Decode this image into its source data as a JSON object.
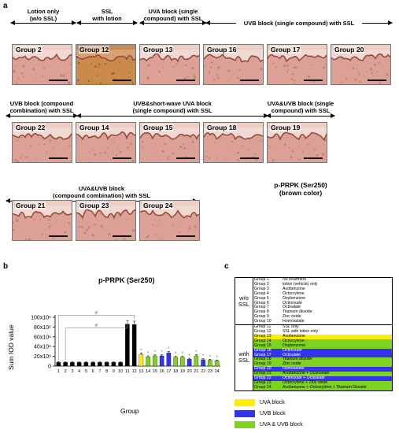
{
  "panel_a": {
    "letter": "a",
    "headers": [
      {
        "id": "lotion-only",
        "text": "Lotion only\n(w/o SSL)"
      },
      {
        "id": "ssl-lotion",
        "text": "SSL\nwith lotion"
      },
      {
        "id": "uva-single",
        "text": "UVA block (single\ncompound) with SSL"
      },
      {
        "id": "uvb-single",
        "text": "UVB block (single compound) with SSL"
      },
      {
        "id": "uvb-combo",
        "text": "UVB block (compound\ncombination) with SSL"
      },
      {
        "id": "uvb-short",
        "text": "UVB&short-wave UVA block\n(single compound) with SSL"
      },
      {
        "id": "uvauvb-single",
        "text": "UVA&UVB block (single\ncompound) with SSL"
      },
      {
        "id": "uvauvb-combo",
        "text": "UVA&UVB block\n(compound combination) with SSL"
      }
    ],
    "tiles": [
      "Group 2",
      "Group 12",
      "Group 13",
      "Group 16",
      "Group 17",
      "Group 20",
      "Group 22",
      "Group 14",
      "Group 15",
      "Group 18",
      "Group 19",
      "Group 21",
      "Group 23",
      "Group 24"
    ],
    "stain_label": "p-PRPK (Ser250)\n(brown color)"
  },
  "panel_b": {
    "letter": "b"
  },
  "panel_c": {
    "letter": "c",
    "wo_ssl_label": "w/o\nSSL",
    "with_ssl_label": "with\nSSL",
    "rows_wo": [
      [
        "Group 1",
        "No treatment"
      ],
      [
        "Group 2",
        "lotion (vehicle) only"
      ],
      [
        "Group 3",
        "Avobenzone"
      ],
      [
        "Group 4",
        "Octocrylene"
      ],
      [
        "Group 5",
        "Oxybenzone"
      ],
      [
        "Group 6",
        "Octinoxate"
      ],
      [
        "Group 7",
        "Octisalate"
      ],
      [
        "Group 8",
        "Titanium dioxide"
      ],
      [
        "Group 9",
        "Zinc oxide"
      ],
      [
        "Group 10",
        "Homosalate"
      ]
    ],
    "rows_with": [
      [
        "Group 11",
        "SSL only"
      ],
      [
        "Group 12",
        "SSL with lotion only"
      ],
      [
        "Group 13",
        "Avobenzone"
      ],
      [
        "Group 14",
        "Octocrylene"
      ],
      [
        "Group 15",
        "Oxybenzone"
      ],
      [
        "Group 16",
        "Octinoxate"
      ],
      [
        "Group 17",
        "Octisalate"
      ],
      [
        "Group 18",
        "Titanium dioxide"
      ],
      [
        "Group 19",
        "Zinc oxide"
      ],
      [
        "Group 20",
        "Homosalate"
      ],
      [
        "Group 21",
        "Avobenzone + Octinoxate"
      ],
      [
        "Group 22",
        "Octinoxate + Octisalate"
      ],
      [
        "Group 23",
        "Octocrylene + Zinc oxide"
      ],
      [
        "Group 24",
        "Avobenzone + Octocrylene + Titanium Dioxide"
      ]
    ],
    "row_colors_with": [
      "#ffffff",
      "#ffffff",
      "#ffee00",
      "#7ed321",
      "#7ed321",
      "#3333ee",
      "#3333ee",
      "#7ed321",
      "#7ed321",
      "#3333ee",
      "#7ed321",
      "#3333ee",
      "#7ed321",
      "#7ed321"
    ],
    "legend": [
      {
        "label": "UVA block",
        "color": "#ffee00"
      },
      {
        "label": "UVB block",
        "color": "#3333ee"
      },
      {
        "label": "UVA & UVB block",
        "color": "#7ed321"
      }
    ]
  },
  "chart_data": {
    "type": "bar",
    "title": "p-PRPK (Ser250)",
    "xlabel": "Group",
    "ylabel": "Sum IOD value",
    "ylim": [
      0,
      100
    ],
    "yticks": [
      "0",
      "20x10⁶",
      "40x10⁶",
      "60x10⁶",
      "80x10⁶",
      "100x10⁶"
    ],
    "categories": [
      "1",
      "2",
      "3",
      "4",
      "5",
      "6",
      "7",
      "8",
      "9",
      "10",
      "11",
      "12",
      "13",
      "14",
      "15",
      "16",
      "17",
      "18",
      "19",
      "20",
      "21",
      "22",
      "23",
      "24"
    ],
    "values": [
      7.5,
      7.5,
      7.5,
      7.5,
      7.5,
      7.5,
      7.5,
      7.5,
      7.5,
      7.5,
      86,
      85,
      24,
      19,
      21,
      21,
      27,
      18,
      18,
      14,
      21,
      13,
      12,
      11
    ],
    "errors": [
      1.5,
      1,
      1,
      1,
      1,
      1,
      1,
      1,
      1,
      1,
      7,
      7,
      3,
      2,
      2,
      2,
      3,
      2,
      2,
      2,
      2,
      2,
      2,
      1.5
    ],
    "colors": [
      "#000000",
      "#000000",
      "#000000",
      "#000000",
      "#000000",
      "#000000",
      "#000000",
      "#000000",
      "#000000",
      "#000000",
      "#000000",
      "#000000",
      "#ffee00",
      "#7ed321",
      "#7ed321",
      "#3333ee",
      "#3333ee",
      "#7ed321",
      "#7ed321",
      "#3333ee",
      "#7ed321",
      "#3333ee",
      "#7ed321",
      "#7ed321"
    ],
    "star_marks": [
      "",
      "",
      "",
      "",
      "",
      "",
      "",
      "",
      "",
      "",
      "",
      "",
      "*",
      "*",
      "*",
      "*",
      "*",
      "*",
      "*",
      "*",
      "*",
      "*",
      "*",
      "*"
    ],
    "hash_label": "#"
  }
}
